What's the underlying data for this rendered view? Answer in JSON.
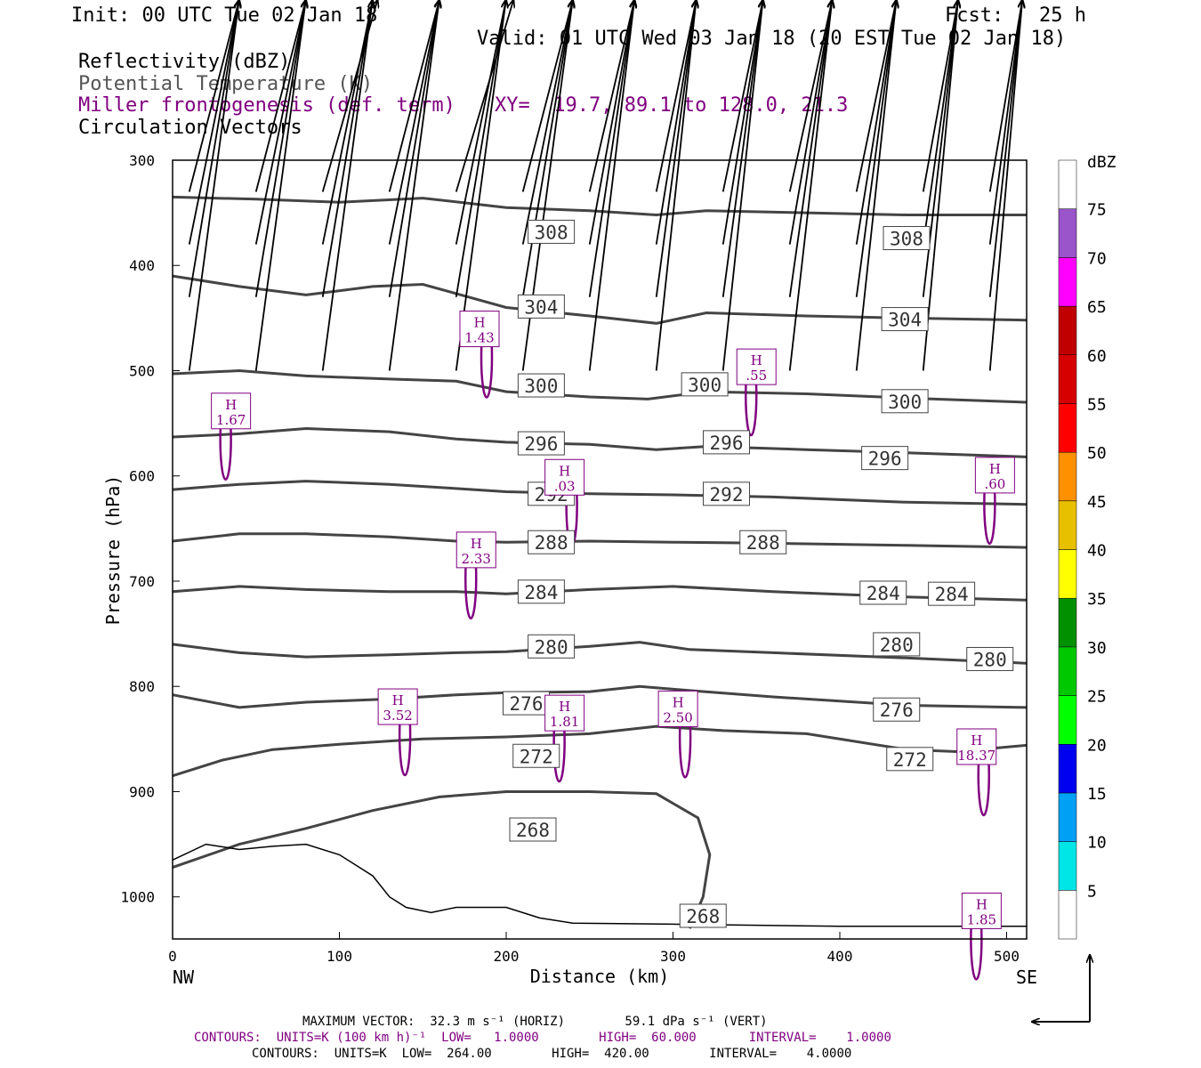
{
  "header": {
    "init": "Init: 00 UTC Tue 02 Jan 18",
    "fcst": "Fcst:   25 h",
    "valid": "Valid: 01 UTC Wed 03 Jan 18 (20 EST Tue 02 Jan 18)",
    "field1": "Reflectivity (dBZ)",
    "field2": "Potential Temperature (K)",
    "field3": "Miller frontogenesis (def. term)",
    "xy": "XY=  19.7, 89.1 to 128.0, 21.3",
    "field4": "Circulation Vectors"
  },
  "colors": {
    "theta": "#444444",
    "frontogenesis": "#800080",
    "terrain": "#000000"
  },
  "chart_data": {
    "type": "cross-section",
    "xlabel": "Distance (km)",
    "ylabel": "Pressure (hPa)",
    "xlim": [
      0,
      512
    ],
    "ylim": [
      1040,
      300
    ],
    "x_ticks": [
      0,
      100,
      200,
      300,
      400,
      500
    ],
    "y_ticks": [
      300,
      400,
      500,
      600,
      700,
      800,
      900,
      1000
    ],
    "x_end_labels": [
      "NW",
      "SE"
    ],
    "colorbar": {
      "title": "dBZ",
      "labels": [
        "5",
        "10",
        "15",
        "20",
        "25",
        "30",
        "35",
        "40",
        "45",
        "50",
        "55",
        "60",
        "65",
        "70",
        "75"
      ],
      "colors": [
        "#ffffff",
        "#00e5e5",
        "#00a0f5",
        "#0000f0",
        "#00ff00",
        "#00c800",
        "#009000",
        "#ffff00",
        "#e7c000",
        "#ff9000",
        "#ff0000",
        "#d60000",
        "#c00000",
        "#ff00ff",
        "#9955c9",
        "#ffffff"
      ]
    },
    "theta_contours": [
      {
        "level": 308,
        "label": "308",
        "pts": [
          [
            0,
            335
          ],
          [
            50,
            337
          ],
          [
            100,
            340
          ],
          [
            150,
            336
          ],
          [
            200,
            345
          ],
          [
            250,
            348
          ],
          [
            290,
            352
          ],
          [
            320,
            348
          ],
          [
            380,
            350
          ],
          [
            440,
            352
          ],
          [
            512,
            352
          ]
        ]
      },
      {
        "level": 304,
        "label": "304",
        "pts": [
          [
            0,
            410
          ],
          [
            40,
            420
          ],
          [
            80,
            428
          ],
          [
            120,
            420
          ],
          [
            150,
            418
          ],
          [
            200,
            440
          ],
          [
            250,
            448
          ],
          [
            290,
            455
          ],
          [
            320,
            445
          ],
          [
            380,
            448
          ],
          [
            440,
            450
          ],
          [
            512,
            452
          ]
        ]
      },
      {
        "level": 300,
        "label": "300",
        "pts": [
          [
            0,
            503
          ],
          [
            40,
            500
          ],
          [
            80,
            505
          ],
          [
            130,
            508
          ],
          [
            170,
            510
          ],
          [
            200,
            520
          ],
          [
            250,
            525
          ],
          [
            285,
            527
          ],
          [
            320,
            520
          ],
          [
            380,
            522
          ],
          [
            440,
            526
          ],
          [
            512,
            530
          ]
        ]
      },
      {
        "level": 296,
        "label": "296",
        "pts": [
          [
            0,
            563
          ],
          [
            40,
            560
          ],
          [
            80,
            555
          ],
          [
            130,
            558
          ],
          [
            170,
            565
          ],
          [
            200,
            568
          ],
          [
            250,
            570
          ],
          [
            290,
            575
          ],
          [
            320,
            572
          ],
          [
            380,
            575
          ],
          [
            440,
            578
          ],
          [
            512,
            582
          ]
        ]
      },
      {
        "level": 292,
        "label": "292",
        "pts": [
          [
            0,
            613
          ],
          [
            40,
            608
          ],
          [
            80,
            605
          ],
          [
            130,
            608
          ],
          [
            170,
            612
          ],
          [
            200,
            615
          ],
          [
            250,
            617
          ],
          [
            300,
            618
          ],
          [
            360,
            620
          ],
          [
            440,
            625
          ],
          [
            512,
            627
          ]
        ]
      },
      {
        "level": 288,
        "label": "288",
        "pts": [
          [
            0,
            662
          ],
          [
            40,
            655
          ],
          [
            80,
            655
          ],
          [
            130,
            658
          ],
          [
            170,
            662
          ],
          [
            200,
            663
          ],
          [
            250,
            662
          ],
          [
            300,
            663
          ],
          [
            360,
            664
          ],
          [
            440,
            666
          ],
          [
            512,
            668
          ]
        ]
      },
      {
        "level": 284,
        "label": "284",
        "pts": [
          [
            0,
            710
          ],
          [
            40,
            705
          ],
          [
            80,
            708
          ],
          [
            130,
            710
          ],
          [
            170,
            710
          ],
          [
            200,
            712
          ],
          [
            250,
            708
          ],
          [
            300,
            705
          ],
          [
            360,
            710
          ],
          [
            440,
            715
          ],
          [
            512,
            718
          ]
        ]
      },
      {
        "level": 280,
        "label": "280",
        "pts": [
          [
            0,
            760
          ],
          [
            40,
            768
          ],
          [
            80,
            772
          ],
          [
            130,
            770
          ],
          [
            170,
            768
          ],
          [
            200,
            767
          ],
          [
            250,
            762
          ],
          [
            280,
            758
          ],
          [
            310,
            765
          ],
          [
            360,
            768
          ],
          [
            440,
            773
          ],
          [
            512,
            778
          ]
        ]
      },
      {
        "level": 276,
        "label": "276",
        "pts": [
          [
            0,
            808
          ],
          [
            40,
            820
          ],
          [
            80,
            815
          ],
          [
            130,
            812
          ],
          [
            170,
            808
          ],
          [
            200,
            806
          ],
          [
            250,
            805
          ],
          [
            280,
            800
          ],
          [
            310,
            804
          ],
          [
            360,
            810
          ],
          [
            440,
            818
          ],
          [
            512,
            820
          ]
        ]
      },
      {
        "level": 272,
        "label": "272",
        "pts": [
          [
            0,
            885
          ],
          [
            30,
            870
          ],
          [
            60,
            860
          ],
          [
            100,
            855
          ],
          [
            150,
            850
          ],
          [
            200,
            848
          ],
          [
            250,
            845
          ],
          [
            290,
            838
          ],
          [
            330,
            842
          ],
          [
            380,
            845
          ],
          [
            440,
            860
          ],
          [
            470,
            862
          ],
          [
            512,
            856
          ]
        ]
      },
      {
        "level": 268,
        "label": "268",
        "pts": [
          [
            0,
            972
          ],
          [
            40,
            950
          ],
          [
            80,
            935
          ],
          [
            120,
            918
          ],
          [
            160,
            905
          ],
          [
            200,
            900
          ],
          [
            250,
            900
          ],
          [
            290,
            902
          ],
          [
            315,
            925
          ],
          [
            322,
            960
          ],
          [
            318,
            1000
          ],
          [
            310,
            1030
          ]
        ]
      }
    ],
    "theta_labels": [
      {
        "text": "308",
        "x": 227,
        "p": 368
      },
      {
        "text": "308",
        "x": 440,
        "p": 374
      },
      {
        "text": "304",
        "x": 221,
        "p": 439
      },
      {
        "text": "304",
        "x": 439,
        "p": 451
      },
      {
        "text": "300",
        "x": 221,
        "p": 514
      },
      {
        "text": "300",
        "x": 319,
        "p": 513
      },
      {
        "text": "300",
        "x": 439,
        "p": 529
      },
      {
        "text": "296",
        "x": 221,
        "p": 569
      },
      {
        "text": "296",
        "x": 332,
        "p": 568
      },
      {
        "text": "296",
        "x": 427,
        "p": 583
      },
      {
        "text": "292",
        "x": 227,
        "p": 617
      },
      {
        "text": "292",
        "x": 332,
        "p": 617
      },
      {
        "text": "288",
        "x": 227,
        "p": 663
      },
      {
        "text": "288",
        "x": 354,
        "p": 663
      },
      {
        "text": "284",
        "x": 221,
        "p": 710
      },
      {
        "text": "284",
        "x": 426,
        "p": 711
      },
      {
        "text": "284",
        "x": 467,
        "p": 712
      },
      {
        "text": "280",
        "x": 227,
        "p": 762
      },
      {
        "text": "280",
        "x": 434,
        "p": 760
      },
      {
        "text": "280",
        "x": 490,
        "p": 774
      },
      {
        "text": "276",
        "x": 212,
        "p": 816
      },
      {
        "text": "276",
        "x": 434,
        "p": 822
      },
      {
        "text": "272",
        "x": 218,
        "p": 866
      },
      {
        "text": "272",
        "x": 442,
        "p": 869
      },
      {
        "text": "268",
        "x": 216,
        "p": 936
      },
      {
        "text": "268",
        "x": 318,
        "p": 1018
      }
    ],
    "maxima": [
      {
        "text": "H",
        "value": "1.67",
        "x": 35,
        "p": 540
      },
      {
        "text": "H",
        "value": "1.43",
        "x": 184,
        "p": 462
      },
      {
        "text": "H",
        "value": ".55",
        "x": 350,
        "p": 498
      },
      {
        "text": "H",
        "value": ".03",
        "x": 235,
        "p": 603
      },
      {
        "text": "H",
        "value": "2.33",
        "x": 182,
        "p": 672
      },
      {
        "text": "H",
        "value": "3.52",
        "x": 135,
        "p": 821
      },
      {
        "text": "H",
        "value": "1.81",
        "x": 235,
        "p": 827
      },
      {
        "text": "H",
        "value": "2.50",
        "x": 303,
        "p": 823
      },
      {
        "text": "H",
        "value": ".60",
        "x": 493,
        "p": 601
      },
      {
        "text": "H",
        "value": "18.37",
        "x": 482,
        "p": 859
      },
      {
        "text": "H",
        "value": "1.85",
        "x": 485,
        "p": 1015
      }
    ],
    "vector_rows": [
      {
        "p": 330,
        "u": [
          2.0,
          2.0,
          2.2,
          2.0,
          2.3,
          2.0,
          1.8,
          1.6,
          1.6,
          1.7,
          1.6,
          1.4,
          1.3
        ],
        "w": [
          1.2,
          0.3,
          0.3,
          0.0,
          0.5,
          -0.8,
          -0.2,
          0.0,
          0.5,
          0.0,
          0.0,
          -0.2,
          -0.1
        ]
      },
      {
        "p": 380,
        "u": [
          2.0,
          2.0,
          2.0,
          2.0,
          2.0,
          2.0,
          1.8,
          1.6,
          1.6,
          1.7,
          1.6,
          1.4,
          1.3
        ],
        "w": [
          1.3,
          0.4,
          -0.3,
          0.5,
          -0.6,
          0.0,
          0.0,
          1.0,
          0.0,
          0.0,
          0.0,
          -0.2,
          -0.1
        ]
      },
      {
        "p": 430,
        "u": [
          2.0,
          2.0,
          2.0,
          2.0,
          2.0,
          2.0,
          1.8,
          1.6,
          1.6,
          1.7,
          1.6,
          1.4,
          1.3
        ],
        "w": [
          1.0,
          0.4,
          -0.2,
          0.4,
          -0.5,
          -0.2,
          -0.3,
          0.5,
          0.0,
          0.0,
          0.0,
          -0.2,
          -0.1
        ]
      },
      {
        "p": 500,
        "u": [
          2.0,
          2.0,
          2.0,
          2.0,
          2.0,
          2.0,
          1.8,
          1.6,
          1.6,
          1.7,
          1.6,
          1.4,
          1.3
        ],
        "w": [
          0.8,
          0.3,
          -0.1,
          0.4,
          -0.4,
          -0.3,
          -0.3,
          0.4,
          -0.1,
          0.0,
          0.0,
          -0.1,
          -0.1
        ]
      }
    ],
    "terrain": [
      [
        0,
        965
      ],
      [
        20,
        950
      ],
      [
        40,
        955
      ],
      [
        60,
        952
      ],
      [
        80,
        950
      ],
      [
        100,
        960
      ],
      [
        110,
        970
      ],
      [
        120,
        980
      ],
      [
        130,
        1000
      ],
      [
        140,
        1010
      ],
      [
        155,
        1015
      ],
      [
        170,
        1010
      ],
      [
        200,
        1010
      ],
      [
        220,
        1020
      ],
      [
        240,
        1025
      ],
      [
        300,
        1026
      ],
      [
        400,
        1028
      ],
      [
        512,
        1028
      ]
    ]
  },
  "footer": {
    "line1": "MAXIMUM VECTOR:  32.3 m s⁻¹ (HORIZ)        59.1 dPa s⁻¹ (VERT)",
    "line2": "CONTOURS:  UNITS=K (100 km h)⁻¹  LOW=   1.0000        HIGH=  60.000       INTERVAL=    1.0000",
    "line3": "CONTOURS:  UNITS=K  LOW=  264.00        HIGH=  420.00        INTERVAL=    4.0000"
  }
}
